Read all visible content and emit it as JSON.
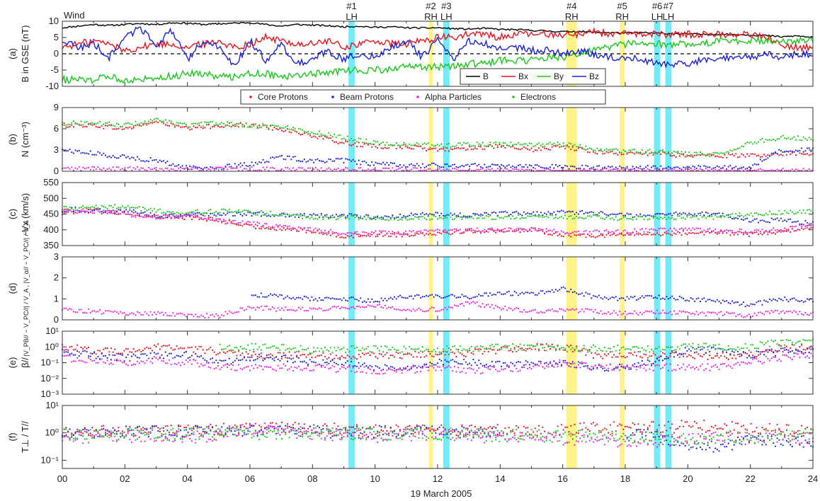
{
  "figure": {
    "spacecraft": "Wind",
    "xlabel": "19 March 2005",
    "x_ticks": [
      "00",
      "02",
      "04",
      "06",
      "08",
      "10",
      "12",
      "14",
      "16",
      "18",
      "20",
      "22",
      "24"
    ]
  },
  "colors": {
    "B": "#000000",
    "Bx": "#e8141c",
    "By": "#18c818",
    "Bz": "#1a22d6",
    "core": "#e8141c",
    "beam": "#1a22d6",
    "alpha": "#f020e0",
    "electrons": "#18c818",
    "rh_band": "#fff27a",
    "lh_band": "#66e8f8"
  },
  "events": [
    {
      "number": "#1",
      "type": "LH",
      "start": 9.15,
      "end": 9.35
    },
    {
      "number": "#2",
      "type": "RH",
      "start": 11.72,
      "end": 11.85
    },
    {
      "number": "#3",
      "type": "LH",
      "start": 12.18,
      "end": 12.38
    },
    {
      "number": "#4",
      "type": "RH",
      "start": 16.12,
      "end": 16.45
    },
    {
      "number": "#5",
      "type": "RH",
      "start": 17.82,
      "end": 17.98
    },
    {
      "number": "#6",
      "type": "LH",
      "start": 18.92,
      "end": 19.12
    },
    {
      "number": "#7",
      "type": "LH",
      "start": 19.28,
      "end": 19.48
    }
  ],
  "scatter_legend": [
    "Core Protons",
    "Beam Protons",
    "Alpha Particles",
    "Electrons"
  ],
  "chart_data": [
    {
      "panel": "(a)",
      "type": "line",
      "ylabel": "B in GSE (nT)",
      "ylim": [
        -10,
        10
      ],
      "y_ticks": [
        "-10",
        "-5",
        "0",
        "5",
        "10"
      ],
      "zero_line": true,
      "legend": "bottom-right",
      "x": [
        0,
        0.5,
        1,
        1.5,
        2,
        2.5,
        3,
        3.5,
        4,
        4.5,
        5,
        5.5,
        6,
        6.5,
        7,
        7.5,
        8,
        8.5,
        9,
        9.5,
        10,
        10.5,
        11,
        11.5,
        12,
        12.5,
        13,
        13.5,
        14,
        14.5,
        15,
        15.5,
        16,
        16.5,
        17,
        17.5,
        18,
        18.5,
        19,
        19.5,
        20,
        20.5,
        21,
        21.5,
        22,
        22.5,
        23,
        23.5,
        24
      ],
      "series": [
        {
          "name": "B",
          "values": [
            8,
            8.5,
            9,
            8.7,
            9,
            9.3,
            9,
            9.5,
            9.4,
            9,
            9.2,
            9.4,
            9.6,
            9,
            8.5,
            9,
            8.8,
            8.6,
            8.3,
            8.5,
            8.1,
            8.3,
            8,
            7.9,
            8,
            7.7,
            7.6,
            7.8,
            7.5,
            7.4,
            7.2,
            7,
            6.8,
            6.9,
            6.6,
            6.5,
            6.4,
            6.5,
            6.3,
            6.2,
            6.1,
            6,
            6,
            5.9,
            5.8,
            5.6,
            5.2,
            5.5,
            5
          ]
        },
        {
          "name": "Bx",
          "values": [
            2,
            3,
            4,
            3,
            1,
            2,
            3,
            3,
            2,
            3,
            4,
            2,
            3,
            5,
            4,
            3,
            3,
            4,
            2,
            3,
            4,
            3,
            3,
            4,
            5,
            5,
            6,
            6,
            5,
            6,
            6,
            6,
            6,
            6,
            7,
            6,
            6,
            6,
            6,
            6,
            6,
            6,
            6,
            6,
            6,
            5,
            3,
            2,
            2
          ]
        },
        {
          "name": "By",
          "values": [
            -8,
            -8,
            -8,
            -7,
            -8,
            -8,
            -7,
            -7,
            -6,
            -6,
            -7,
            -7,
            -6,
            -6,
            -7,
            -7,
            -6,
            -6,
            -5,
            -5,
            -5,
            -5,
            -4,
            -4,
            -4,
            -4,
            -3,
            -3,
            -2,
            -2,
            -2,
            -1,
            -1,
            0,
            1,
            2,
            3,
            3,
            3,
            3,
            3,
            3,
            4,
            4,
            4,
            4,
            4,
            4,
            4
          ]
        },
        {
          "name": "Bz",
          "values": [
            4,
            2,
            3,
            -1,
            5,
            8,
            3,
            7,
            -2,
            4,
            2,
            -4,
            4,
            -2,
            3,
            -3,
            -2,
            1,
            -2,
            0,
            -1,
            2,
            4,
            -1,
            4,
            -2,
            4,
            3,
            2,
            2,
            1,
            1,
            0,
            1,
            0,
            -1,
            -1,
            -2,
            -3,
            -3,
            -3,
            -2,
            -2,
            -1,
            -1,
            0,
            -1,
            0,
            0
          ]
        }
      ]
    },
    {
      "panel": "(b)",
      "type": "scatter",
      "ylabel": "N (cm⁻³)",
      "ylim": [
        0,
        9
      ],
      "y_ticks": [
        "0",
        "3",
        "6",
        "9"
      ],
      "x": [
        0,
        1,
        2,
        3,
        4,
        5,
        6,
        7,
        8,
        9,
        10,
        11,
        12,
        13,
        14,
        15,
        16,
        17,
        18,
        19,
        20,
        21,
        22,
        23,
        24
      ],
      "series": [
        {
          "name": "Core Protons",
          "values": [
            6.5,
            6.5,
            6,
            7,
            6,
            6.5,
            6.5,
            6,
            5,
            4,
            3.5,
            3.5,
            3,
            3.3,
            3.5,
            3,
            3.5,
            2.8,
            2.5,
            2.5,
            2.2,
            2.2,
            2.2,
            2.5,
            2.6
          ]
        },
        {
          "name": "Beam Protons",
          "values": [
            3,
            2.5,
            2,
            1.5,
            0.5,
            0.5,
            1,
            2,
            1.5,
            1.5,
            1,
            0.8,
            0.8,
            0.8,
            0.8,
            0.8,
            0.6,
            0.5,
            0.5,
            0.5,
            0.5,
            0.5,
            0.6,
            3,
            3
          ]
        },
        {
          "name": "Alpha Particles",
          "values": [
            0.3,
            0.4,
            0.3,
            0.3,
            0.3,
            0.3,
            0.3,
            0.3,
            0.2,
            0.2,
            0.2,
            0.2,
            0.1,
            0.1,
            0.1,
            0.1,
            0.1,
            0.1,
            0.1,
            0.1,
            0.1,
            0.1,
            0.1,
            0.1,
            0.1
          ]
        },
        {
          "name": "Electrons",
          "values": [
            6.8,
            6.8,
            6.5,
            7.2,
            6.5,
            6.8,
            6.5,
            6.3,
            5.5,
            4.8,
            4,
            3.8,
            3.6,
            3.8,
            3.8,
            3.8,
            3.8,
            3.2,
            2.8,
            2.8,
            2.4,
            2.4,
            4,
            4.8,
            4.6
          ]
        }
      ]
    },
    {
      "panel": "(c)",
      "type": "scatter",
      "ylabel": "-Vx (km/s)",
      "ylim": [
        350,
        550
      ],
      "y_ticks": [
        "350",
        "400",
        "450",
        "500",
        "550"
      ],
      "x": [
        0,
        1,
        2,
        3,
        4,
        5,
        6,
        7,
        8,
        9,
        10,
        11,
        12,
        13,
        14,
        15,
        16,
        17,
        18,
        19,
        20,
        21,
        22,
        23,
        24
      ],
      "series": [
        {
          "name": "Core Protons",
          "values": [
            462,
            460,
            455,
            440,
            440,
            430,
            410,
            405,
            395,
            380,
            385,
            385,
            390,
            395,
            398,
            400,
            385,
            382,
            385,
            387,
            390,
            392,
            385,
            395,
            410
          ]
        },
        {
          "name": "Beam Protons",
          "values": [
            465,
            462,
            460,
            445,
            448,
            450,
            450,
            448,
            445,
            445,
            440,
            445,
            450,
            445,
            452,
            450,
            455,
            455,
            445,
            450,
            450,
            450,
            430,
            430,
            420
          ]
        },
        {
          "name": "Alpha Particles",
          "values": [
            455,
            460,
            450,
            440,
            445,
            430,
            420,
            410,
            400,
            390,
            390,
            390,
            395,
            398,
            400,
            400,
            392,
            392,
            395,
            398,
            400,
            398,
            395,
            400,
            415
          ]
        },
        {
          "name": "Electrons",
          "values": [
            470,
            470,
            475,
            460,
            455,
            460,
            455,
            450,
            440,
            440,
            435,
            435,
            440,
            440,
            440,
            440,
            440,
            440,
            435,
            440,
            440,
            440,
            450,
            455,
            460
          ]
        }
      ]
    },
    {
      "panel": "(d)",
      "type": "scatter",
      "ylabel": "|V_PB// − V_PC//| / V_A  ,  |V_α// − V_PC//| / V_A",
      "ylim": [
        0,
        3
      ],
      "y_ticks": [
        "0",
        "1",
        "2",
        "3"
      ],
      "x": [
        0,
        1,
        2,
        3,
        4,
        5,
        6,
        7,
        8,
        9,
        10,
        11,
        12,
        13,
        14,
        15,
        16,
        17,
        18,
        19,
        20,
        21,
        22,
        23,
        24
      ],
      "series": [
        {
          "name": "Beam Protons",
          "values": [
            null,
            null,
            null,
            null,
            null,
            null,
            1.2,
            1.1,
            1,
            1,
            0.9,
            1.1,
            1.1,
            1.1,
            1.3,
            1.2,
            1.5,
            1.1,
            1,
            1.1,
            1,
            0.9,
            0.7,
            1,
            0.9
          ]
        },
        {
          "name": "Alpha Particles",
          "values": [
            0.5,
            0.4,
            0.3,
            0.3,
            0.2,
            0.2,
            0.6,
            0.5,
            0.5,
            0.6,
            0.7,
            0.5,
            0.5,
            0.8,
            0.6,
            0.4,
            0.5,
            0.4,
            0.3,
            0.4,
            0.3,
            0.3,
            0.2,
            0.4,
            0.3
          ]
        }
      ]
    },
    {
      "panel": "(e)",
      "type": "scatter",
      "yscale": "log",
      "ylabel": "β//",
      "ylim": [
        0.001,
        10
      ],
      "y_ticks": [
        "10⁻³",
        "10⁻²",
        "10⁻¹",
        "10⁰",
        "10¹"
      ],
      "x": [
        0,
        1,
        2,
        3,
        4,
        5,
        6,
        7,
        8,
        9,
        10,
        11,
        12,
        13,
        14,
        15,
        16,
        17,
        18,
        19,
        20,
        21,
        22,
        23,
        24
      ],
      "series": [
        {
          "name": "Core Protons",
          "values": [
            1,
            0.6,
            0.5,
            1,
            0.8,
            0.5,
            0.3,
            0.3,
            0.3,
            0.2,
            0.3,
            0.3,
            0.4,
            0.4,
            0.6,
            1,
            1,
            0.3,
            0.3,
            0.3,
            0.3,
            0.25,
            0.3,
            0.8,
            1
          ]
        },
        {
          "name": "Beam Protons",
          "values": [
            0.5,
            0.3,
            0.2,
            0.3,
            0.3,
            0.1,
            0.2,
            0.2,
            0.1,
            0.1,
            0.05,
            0.05,
            0.1,
            0.1,
            0.08,
            0.08,
            0.1,
            0.05,
            0.05,
            0.1,
            0.6,
            0.6,
            0.3,
            0.5,
            0.6
          ]
        },
        {
          "name": "Alpha Particles",
          "values": [
            0.2,
            0.15,
            0.1,
            0.15,
            0.1,
            0.05,
            0.05,
            0.05,
            0.05,
            0.04,
            0.03,
            0.03,
            0.05,
            0.03,
            0.04,
            0.05,
            0.1,
            0.05,
            0.05,
            0.05,
            0.05,
            0.05,
            0.1,
            0.2,
            0.3
          ]
        },
        {
          "name": "Electrons",
          "values": [
            null,
            null,
            null,
            null,
            null,
            1,
            1,
            0.9,
            0.6,
            0.7,
            0.7,
            0.7,
            0.7,
            0.8,
            0.9,
            1,
            0.8,
            0.8,
            0.8,
            0.8,
            1,
            1,
            1,
            2,
            2
          ]
        }
      ]
    },
    {
      "panel": "(f)",
      "type": "scatter",
      "yscale": "log",
      "ylabel": "T⊥ / T//",
      "ylim": [
        0.05,
        10
      ],
      "y_ticks": [
        "10⁻¹",
        "10⁰",
        "10¹"
      ],
      "x": [
        0,
        1,
        2,
        3,
        4,
        5,
        6,
        7,
        8,
        9,
        10,
        11,
        12,
        13,
        14,
        15,
        16,
        17,
        18,
        19,
        20,
        21,
        22,
        23,
        24
      ],
      "series": [
        {
          "name": "Core Protons",
          "values": [
            1,
            1.2,
            1.1,
            1.2,
            1.2,
            1.3,
            1.5,
            1.5,
            1.4,
            1.3,
            1.3,
            1.3,
            1.2,
            1.2,
            1.2,
            1.1,
            1.2,
            1.5,
            1.6,
            1.6,
            1.7,
            1.7,
            1.5,
            1.3,
            1
          ]
        },
        {
          "name": "Beam Protons",
          "values": [
            1.1,
            1.1,
            1.1,
            1.1,
            1.1,
            1.1,
            1.2,
            1.2,
            1.1,
            1.1,
            1.1,
            1.1,
            1.1,
            1.1,
            1.1,
            null,
            null,
            null,
            0.8,
            0.8,
            0.3,
            0.3,
            0.5,
            0.5,
            0.5
          ]
        },
        {
          "name": "Alpha Particles",
          "values": [
            0.7,
            0.7,
            0.7,
            0.8,
            0.7,
            0.8,
            1.5,
            1.2,
            0.9,
            0.8,
            0.7,
            0.8,
            0.9,
            0.7,
            0.7,
            0.7,
            0.6,
            0.5,
            0.5,
            0.5,
            0.6,
            0.7,
            0.6,
            0.8,
            0.6
          ]
        },
        {
          "name": "Electrons",
          "values": [
            0.9,
            0.9,
            0.9,
            0.9,
            0.9,
            0.9,
            0.95,
            0.95,
            0.92,
            0.9,
            0.9,
            0.9,
            0.9,
            0.85,
            0.8,
            0.8,
            0.7,
            0.8,
            0.7,
            0.6,
            0.6,
            0.65,
            0.7,
            0.8,
            0.85
          ]
        }
      ]
    }
  ]
}
